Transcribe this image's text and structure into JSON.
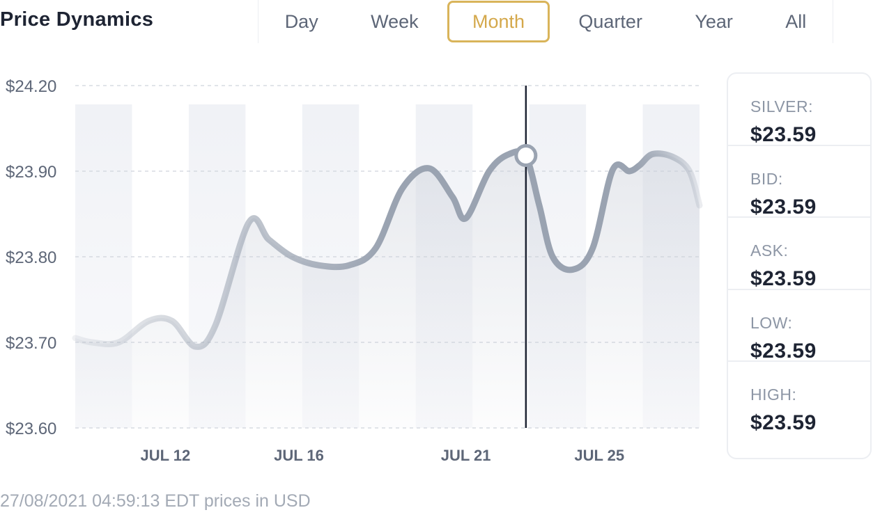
{
  "header": {
    "title": "Price Dynamics",
    "tabs": [
      {
        "label": "Day"
      },
      {
        "label": "Week"
      },
      {
        "label": "Month",
        "active": true
      },
      {
        "label": "Quarter"
      },
      {
        "label": "Year"
      },
      {
        "label": "All"
      }
    ]
  },
  "panel": {
    "stats": [
      {
        "label": "SILVER:",
        "value": "$23.59"
      },
      {
        "label": "BID:",
        "value": "$23.59"
      },
      {
        "label": "ASK:",
        "value": "$23.59"
      },
      {
        "label": "LOW:",
        "value": "$23.59"
      },
      {
        "label": "HIGH:",
        "value": "$23.59"
      }
    ]
  },
  "footer": {
    "text": "27/08/2021 04:59:13 EDT prices in USD"
  },
  "colors": {
    "accent": "#d9b45a",
    "line": "#9aa3b1",
    "crosshair": "#1e2433"
  },
  "chart_data": {
    "type": "line",
    "ylim": [
      23.6,
      24.2
    ],
    "yticks": [
      "$23.60",
      "$23.70",
      "$23.80",
      "$23.90",
      "$24.20"
    ],
    "ytick_values": [
      23.6,
      23.7,
      23.8,
      23.9,
      24.2
    ],
    "xlim": [
      9.3,
      28.0
    ],
    "xticks": [
      {
        "label": "JUL 12",
        "day": 12
      },
      {
        "label": "JUL 16",
        "day": 16
      },
      {
        "label": "JUL 21",
        "day": 21
      },
      {
        "label": "JUL 25",
        "day": 25
      }
    ],
    "highlight_day": 22.8,
    "series": [
      {
        "x": [
          9.3,
          9.8,
          10.6,
          11.5,
          12.2,
          12.9,
          13.5,
          14.5,
          15.1,
          15.8,
          16.6,
          17.5,
          18.3,
          19.1,
          19.9,
          20.6,
          21.0,
          21.7,
          22.3,
          22.8,
          23.2,
          23.6,
          24.2,
          24.8,
          25.4,
          25.9,
          26.2,
          26.6,
          27.2,
          27.7,
          28.0
        ],
        "y": [
          23.705,
          23.7,
          23.7,
          23.725,
          23.725,
          23.695,
          23.72,
          23.84,
          23.82,
          23.8,
          23.79,
          23.79,
          23.81,
          23.88,
          23.91,
          23.87,
          23.845,
          23.9,
          23.96,
          23.95,
          23.86,
          23.8,
          23.785,
          23.81,
          23.905,
          23.9,
          23.92,
          23.96,
          23.95,
          23.9,
          23.86
        ]
      }
    ]
  }
}
